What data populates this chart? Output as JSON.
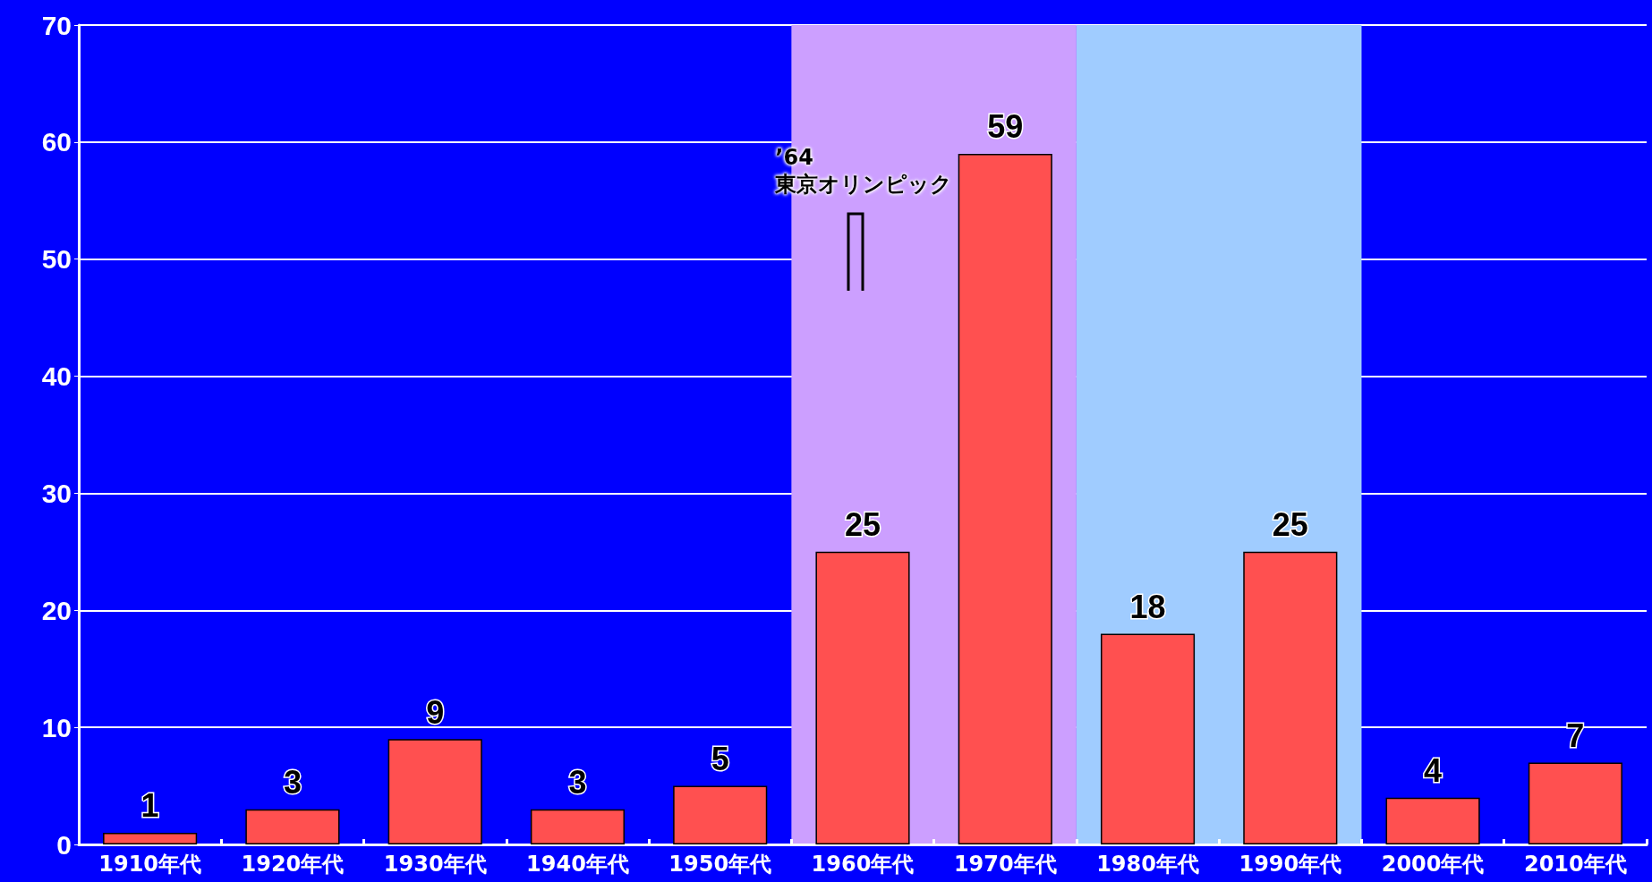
{
  "chart_data": {
    "type": "bar",
    "categories": [
      "1910年代",
      "1920年代",
      "1930年代",
      "1940年代",
      "1950年代",
      "1960年代",
      "1970年代",
      "1980年代",
      "1990年代",
      "2000年代",
      "2010年代"
    ],
    "values": [
      1,
      3,
      9,
      3,
      5,
      25,
      59,
      18,
      25,
      4,
      7
    ],
    "color": "#ff5050",
    "ylim": [
      0,
      70
    ],
    "yticks": [
      0,
      10,
      20,
      30,
      40,
      50,
      60,
      70
    ],
    "grid": "y",
    "data_labels": true,
    "bands": [
      {
        "axis": "x",
        "from": "1960年代",
        "to": "1970年代",
        "color": "#cc9fff"
      },
      {
        "axis": "x",
        "from": "1980年代",
        "to": "1990年代",
        "color": "#a0ccff"
      }
    ],
    "annotations": [
      "’64\n東京オリンピック"
    ]
  }
}
